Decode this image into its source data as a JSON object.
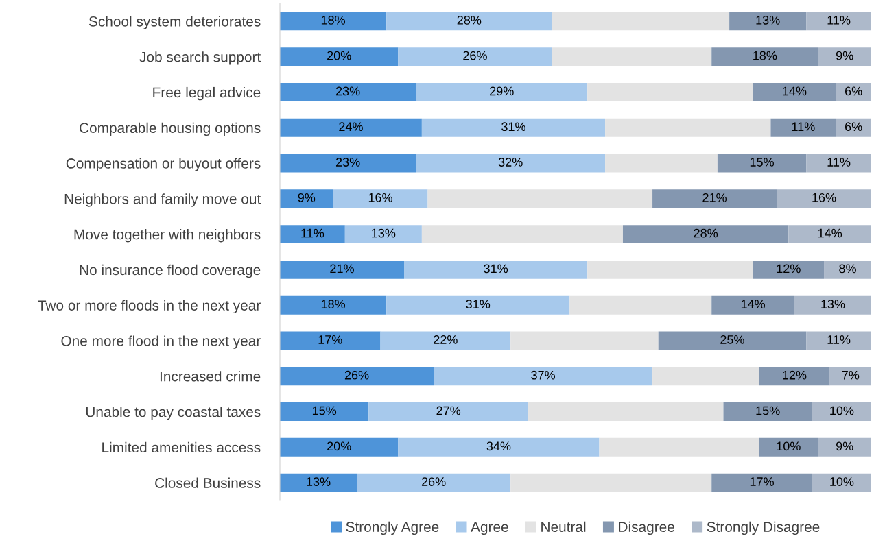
{
  "chart_data": {
    "type": "bar",
    "orientation": "horizontal",
    "stacked": true,
    "legend": "bottom",
    "tick_labels": "y",
    "grid": false,
    "xlim": [
      0,
      100
    ],
    "categories": [
      "School system deteriorates",
      "Job search support",
      "Free legal advice",
      "Comparable housing options",
      "Compensation or buyout offers",
      "Neighbors and family move out",
      "Move together with neighbors",
      "No insurance flood coverage",
      "Two or more floods in the next year",
      "One more flood in the next year",
      "Increased crime",
      "Unable to pay coastal taxes",
      "Limited amenities access",
      "Closed Business"
    ],
    "series": [
      {
        "name": "Strongly Agree",
        "color": "#4e94d9",
        "values": [
          18,
          20,
          23,
          24,
          23,
          9,
          11,
          21,
          18,
          17,
          26,
          15,
          20,
          13
        ],
        "value_labels": [
          "18%",
          "20%",
          "23%",
          "24%",
          "23%",
          "9%",
          "11%",
          "21%",
          "18%",
          "17%",
          "26%",
          "15%",
          "20%",
          "13%"
        ]
      },
      {
        "name": "Agree",
        "color": "#a7c9ec",
        "values": [
          28,
          26,
          29,
          31,
          32,
          16,
          13,
          31,
          31,
          22,
          37,
          27,
          34,
          26
        ],
        "value_labels": [
          "28%",
          "26%",
          "29%",
          "31%",
          "32%",
          "16%",
          "13%",
          "31%",
          "31%",
          "22%",
          "37%",
          "27%",
          "34%",
          "26%"
        ]
      },
      {
        "name": "Neutral",
        "color": "#e3e3e3",
        "values": [
          30,
          27,
          28,
          28,
          19,
          38,
          34,
          28,
          24,
          25,
          18,
          33,
          27,
          34
        ]
      },
      {
        "name": "Disagree",
        "color": "#8497b0",
        "values": [
          13,
          18,
          14,
          11,
          15,
          21,
          28,
          12,
          14,
          25,
          12,
          15,
          10,
          17
        ],
        "value_labels": [
          "13%",
          "18%",
          "14%",
          "11%",
          "15%",
          "21%",
          "28%",
          "12%",
          "14%",
          "25%",
          "12%",
          "15%",
          "10%",
          "17%"
        ]
      },
      {
        "name": "Strongly Disagree",
        "color": "#adb9ca",
        "values": [
          11,
          9,
          6,
          6,
          11,
          16,
          14,
          8,
          13,
          11,
          7,
          10,
          9,
          10
        ],
        "value_labels": [
          "11%",
          "9%",
          "6%",
          "6%",
          "11%",
          "16%",
          "14%",
          "8%",
          "13%",
          "11%",
          "7%",
          "10%",
          "9%",
          "10%"
        ]
      }
    ]
  }
}
